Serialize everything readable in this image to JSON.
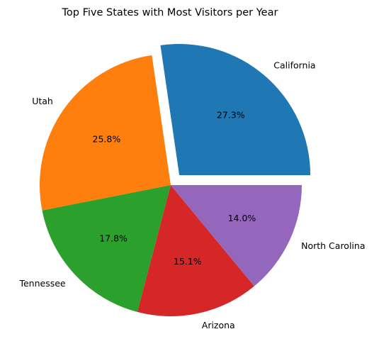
{
  "chart_data": {
    "type": "pie",
    "title": "Top Five States with Most Visitors per Year",
    "slices": [
      {
        "label": "California",
        "value": 27.3,
        "pct_label": "27.3%",
        "color": "#1f77b4",
        "exploded": true
      },
      {
        "label": "Utah",
        "value": 25.8,
        "pct_label": "25.8%",
        "color": "#ff7f0e",
        "exploded": false
      },
      {
        "label": "Tennessee",
        "value": 17.8,
        "pct_label": "17.8%",
        "color": "#2ca02c",
        "exploded": false
      },
      {
        "label": "Arizona",
        "value": 15.1,
        "pct_label": "15.1%",
        "color": "#d62728",
        "exploded": false
      },
      {
        "label": "North Carolina",
        "value": 14.0,
        "pct_label": "14.0%",
        "color": "#9467bd",
        "exploded": false
      }
    ],
    "start_angle_deg": 0,
    "direction": "counterclockwise",
    "legend": "none"
  }
}
